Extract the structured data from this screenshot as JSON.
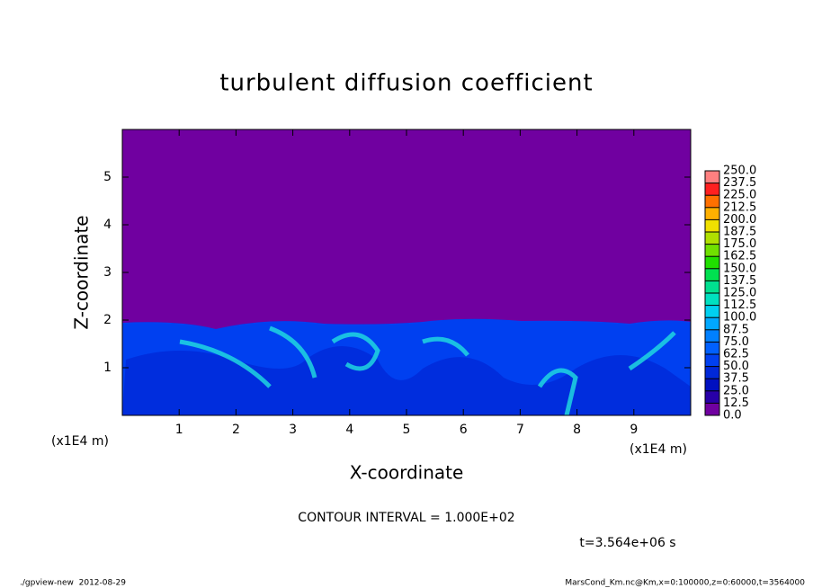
{
  "chart_data": {
    "type": "contour",
    "title": "turbulent diffusion coefficient",
    "x_label": "X-coordinate",
    "y_label": "Z-coordinate",
    "x_unit": "(x1E4 m)",
    "xlim": [
      0,
      10
    ],
    "xticks": [
      1,
      2,
      3,
      4,
      5,
      6,
      7,
      8,
      9
    ],
    "ylim": [
      0,
      6
    ],
    "yticks": [
      1,
      2,
      3,
      4,
      5
    ],
    "levels": [
      {
        "value": 0,
        "label": "0.0"
      },
      12.5,
      {
        "value": 25,
        "label": "25.0"
      },
      37.5,
      {
        "value": 50,
        "label": "50.0"
      },
      62.5,
      {
        "value": 75,
        "label": "75.0"
      },
      87.5,
      {
        "value": 100,
        "label": "100.0"
      },
      112.5,
      {
        "value": 125,
        "label": "125.0"
      },
      137.5,
      {
        "value": 150,
        "label": "150.0"
      },
      162.5,
      {
        "value": 175,
        "label": "175.0"
      },
      187.5,
      {
        "value": 200,
        "label": "200.0"
      },
      212.5,
      {
        "value": 225,
        "label": "225.0"
      },
      237.5,
      {
        "value": 250,
        "label": "250.0"
      }
    ],
    "level_colors": [
      "#7000a0",
      "#2800a8",
      "#0010c0",
      "#0028d8",
      "#0040f0",
      "#0060ff",
      "#0080ff",
      "#00a8ff",
      "#00d0f0",
      "#00e0c0",
      "#00e090",
      "#00e050",
      "#20e000",
      "#70e000",
      "#b0e000",
      "#f0e000",
      "#ffb000",
      "#ff7000",
      "#ff2020",
      "#ff8080"
    ],
    "contour_interval": "CONTOUR INTERVAL = 1.000E+02",
    "time_label": "t=3.564e+06 s",
    "footer_left": "./gpview-new  2012-08-29",
    "footer_right": "MarsCond_Km.nc@Km,x=0:100000,z=0:60000,t=3564000"
  }
}
